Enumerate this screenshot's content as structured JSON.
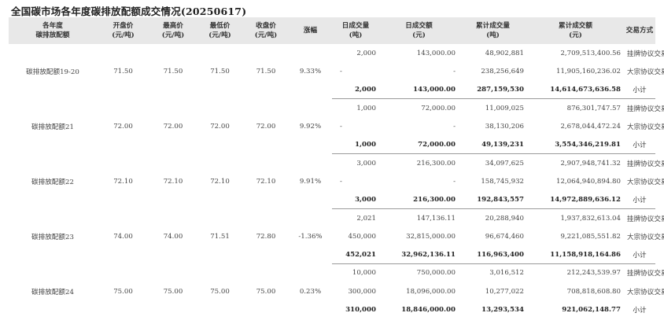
{
  "title": "全国碳市场各年度碳排放配额成交情况(20250617)",
  "headers": {
    "product": "各年度\n碳排放配额",
    "open": "开盘价\n(元/吨)",
    "high": "最高价\n(元/吨)",
    "low": "最低价\n(元/吨)",
    "close": "收盘价\n(元/吨)",
    "change": "涨幅",
    "day_volume": "日成交量\n(吨)",
    "day_amount": "日成交额\n(元)",
    "cum_volume": "累计成交量\n(吨)",
    "cum_amount": "累计成交额\n(元)",
    "method": "交易方式"
  },
  "groups": [
    {
      "name": "碳排放配额19-20",
      "open": "71.50",
      "high": "71.50",
      "low": "71.50",
      "close": "71.50",
      "change": "9.33%",
      "rows": [
        {
          "day_volume": "2,000",
          "day_amount": "143,000.00",
          "cum_volume": "48,902,881",
          "cum_amount": "2,709,513,400.56",
          "method": "挂牌协议交易"
        },
        {
          "day_volume": "-",
          "day_amount": "-",
          "cum_volume": "238,256,649",
          "cum_amount": "11,905,160,236.02",
          "method": "大宗协议交易"
        }
      ],
      "subtotal": {
        "day_volume": "2,000",
        "day_amount": "143,000.00",
        "cum_volume": "287,159,530",
        "cum_amount": "14,614,673,636.58",
        "method": "小计"
      }
    },
    {
      "name": "碳排放配额21",
      "open": "72.00",
      "high": "72.00",
      "low": "72.00",
      "close": "72.00",
      "change": "9.92%",
      "rows": [
        {
          "day_volume": "1,000",
          "day_amount": "72,000.00",
          "cum_volume": "11,009,025",
          "cum_amount": "876,301,747.57",
          "method": "挂牌协议交易"
        },
        {
          "day_volume": "-",
          "day_amount": "-",
          "cum_volume": "38,130,206",
          "cum_amount": "2,678,044,472.24",
          "method": "大宗协议交易"
        }
      ],
      "subtotal": {
        "day_volume": "1,000",
        "day_amount": "72,000.00",
        "cum_volume": "49,139,231",
        "cum_amount": "3,554,346,219.81",
        "method": "小计"
      }
    },
    {
      "name": "碳排放配额22",
      "open": "72.10",
      "high": "72.10",
      "low": "72.10",
      "close": "72.10",
      "change": "9.91%",
      "rows": [
        {
          "day_volume": "3,000",
          "day_amount": "216,300.00",
          "cum_volume": "34,097,625",
          "cum_amount": "2,907,948,741.32",
          "method": "挂牌协议交易"
        },
        {
          "day_volume": "-",
          "day_amount": "-",
          "cum_volume": "158,745,932",
          "cum_amount": "12,064,940,894.80",
          "method": "大宗协议交易"
        }
      ],
      "subtotal": {
        "day_volume": "3,000",
        "day_amount": "216,300.00",
        "cum_volume": "192,843,557",
        "cum_amount": "14,972,889,636.12",
        "method": "小计"
      }
    },
    {
      "name": "碳排放配额23",
      "open": "74.00",
      "high": "74.00",
      "low": "71.51",
      "close": "72.80",
      "change": "-1.36%",
      "rows": [
        {
          "day_volume": "2,021",
          "day_amount": "147,136.11",
          "cum_volume": "20,288,940",
          "cum_amount": "1,937,832,613.04",
          "method": "挂牌协议交易"
        },
        {
          "day_volume": "450,000",
          "day_amount": "32,815,000.00",
          "cum_volume": "96,674,460",
          "cum_amount": "9,221,085,551.82",
          "method": "大宗协议交易"
        }
      ],
      "subtotal": {
        "day_volume": "452,021",
        "day_amount": "32,962,136.11",
        "cum_volume": "116,963,400",
        "cum_amount": "11,158,918,164.86",
        "method": "小计"
      }
    },
    {
      "name": "碳排放配额24",
      "open": "75.00",
      "high": "75.00",
      "low": "75.00",
      "close": "75.00",
      "change": "0.23%",
      "rows": [
        {
          "day_volume": "10,000",
          "day_amount": "750,000.00",
          "cum_volume": "3,016,512",
          "cum_amount": "212,243,539.97",
          "method": "挂牌协议交易"
        },
        {
          "day_volume": "300,000",
          "day_amount": "18,096,000.00",
          "cum_volume": "10,277,022",
          "cum_amount": "708,818,608.80",
          "method": "大宗协议交易"
        }
      ],
      "subtotal": {
        "day_volume": "310,000",
        "day_amount": "18,846,000.00",
        "cum_volume": "13,293,534",
        "cum_amount": "921,062,148.77",
        "method": "小计"
      }
    }
  ]
}
